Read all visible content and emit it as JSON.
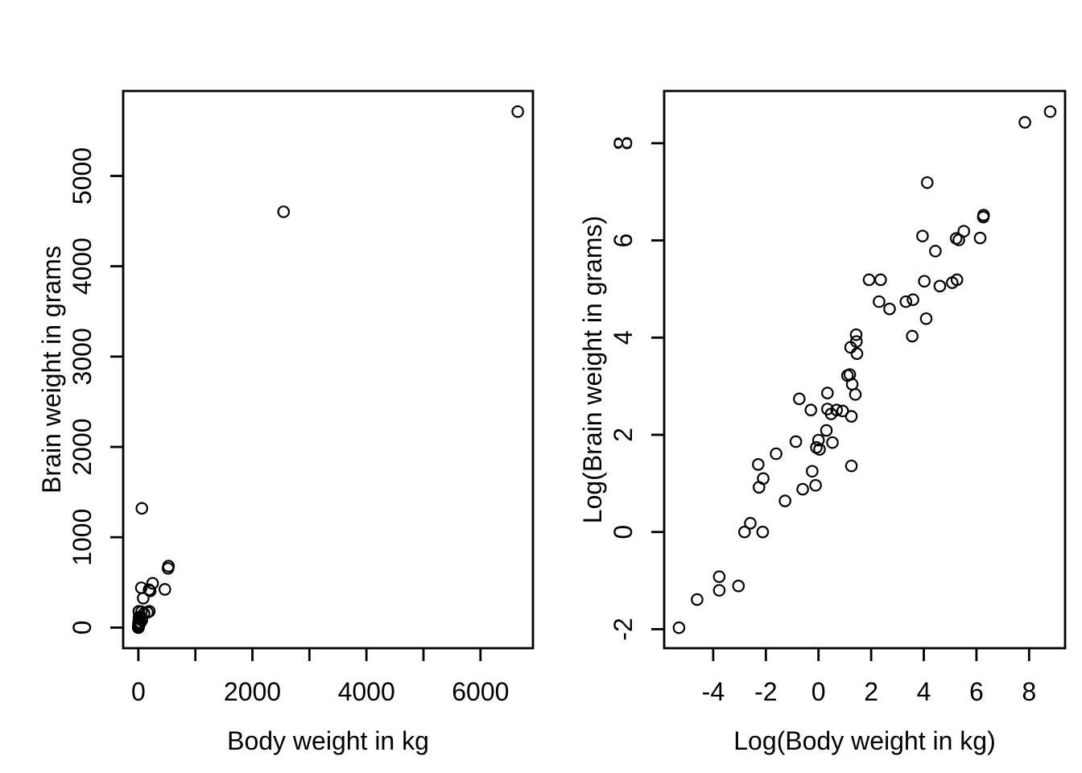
{
  "figure": {
    "background": "#ffffff",
    "foreground": "#000000",
    "marker": "open-circle"
  },
  "chart_data": [
    {
      "type": "scatter",
      "title": "",
      "xlabel": "Body weight in kg",
      "ylabel": "Brain weight in grams",
      "marker": "open-circle",
      "grid": false,
      "legend": "none",
      "xlim": [
        -266.2,
        6920.2
      ],
      "ylim": [
        -228.3,
        5940.5
      ],
      "xticks": [
        0,
        1000,
        2000,
        3000,
        4000,
        5000,
        6000
      ],
      "xtick_labels": [
        "0",
        "",
        "2000",
        "",
        "4000",
        "",
        "6000"
      ],
      "yticks": [
        0,
        1000,
        2000,
        3000,
        4000,
        5000
      ],
      "ytick_labels": [
        "0",
        "1000",
        "2000",
        "3000",
        "4000",
        "5000"
      ],
      "x": [
        3.385,
        0.48,
        1.35,
        465,
        36.33,
        27.66,
        14.83,
        1.04,
        4.19,
        0.425,
        0.101,
        0.92,
        1,
        0.005,
        0.06,
        3.5,
        2,
        1.7,
        2547,
        0.023,
        187.1,
        521,
        0.785,
        10,
        3.3,
        0.2,
        1.41,
        529,
        207,
        85,
        0.75,
        62,
        6654,
        3.5,
        6.8,
        35,
        4.05,
        0.12,
        0.023,
        0.01,
        1.4,
        250,
        2.5,
        55.5,
        100,
        52.16,
        10.55,
        0.55,
        60,
        3.6,
        4.288,
        0.28,
        0.075,
        0.122,
        0.048,
        192,
        3,
        160,
        0.9,
        1.62,
        0.104,
        4.235
      ],
      "y": [
        44.5,
        15.5,
        8.1,
        423,
        119.5,
        115,
        98.2,
        5.5,
        58,
        6.4,
        4,
        5.7,
        6.6,
        0.14,
        1,
        10.8,
        12.3,
        6.3,
        4603,
        0.3,
        419,
        655,
        3.5,
        115,
        25.6,
        5,
        17.5,
        680,
        406,
        325,
        12.3,
        1320,
        5712,
        3.9,
        179,
        56,
        17,
        1,
        0.4,
        0.25,
        12.5,
        490,
        12.1,
        175,
        157,
        440,
        179.5,
        2.4,
        81,
        21,
        39.2,
        1.9,
        1.2,
        3,
        0.33,
        180,
        25,
        169,
        2.6,
        11.4,
        2.5,
        50.4
      ]
    },
    {
      "type": "scatter",
      "title": "",
      "xlabel": "Log(Body weight in kg)",
      "ylabel": "Log(Brain weight in grams)",
      "marker": "open-circle",
      "grid": false,
      "legend": "none",
      "xlim": [
        -5.862,
        9.367
      ],
      "ylim": [
        -2.391,
        9.075
      ],
      "xticks": [
        -4,
        -2,
        0,
        2,
        4,
        6,
        8
      ],
      "xtick_labels": [
        "-4",
        "-2",
        "0",
        "2",
        "4",
        "6",
        "8"
      ],
      "yticks": [
        -2,
        0,
        2,
        4,
        6,
        8
      ],
      "ytick_labels": [
        "-2",
        "0",
        "2",
        "4",
        "6",
        "8"
      ],
      "x": [
        1.22,
        -0.73,
        0.3,
        6.14,
        3.59,
        3.32,
        2.7,
        0.04,
        1.43,
        -0.86,
        -2.29,
        -0.08,
        0.0,
        -5.3,
        -2.81,
        1.25,
        0.69,
        0.53,
        7.84,
        -3.77,
        5.23,
        6.26,
        -0.24,
        2.3,
        1.19,
        -1.61,
        0.34,
        6.27,
        5.33,
        4.44,
        -0.29,
        4.13,
        8.8,
        1.25,
        1.92,
        3.56,
        1.4,
        -2.12,
        -3.77,
        -4.61,
        0.34,
        5.52,
        0.92,
        4.02,
        4.61,
        3.95,
        2.36,
        -0.6,
        4.09,
        1.28,
        1.46,
        -1.27,
        -2.59,
        -2.1,
        -3.04,
        5.26,
        1.1,
        5.08,
        -0.11,
        0.48,
        -2.26,
        1.44
      ],
      "y": [
        3.8,
        2.74,
        2.09,
        6.05,
        4.78,
        4.74,
        4.59,
        1.7,
        4.06,
        1.86,
        1.39,
        1.74,
        1.89,
        -1.97,
        0.0,
        2.38,
        2.51,
        1.84,
        8.43,
        -1.2,
        6.04,
        6.48,
        1.25,
        4.74,
        3.24,
        1.61,
        2.86,
        6.52,
        6.01,
        5.78,
        2.51,
        7.19,
        8.65,
        1.36,
        5.19,
        4.03,
        2.83,
        0.0,
        -0.92,
        -1.39,
        2.53,
        6.19,
        2.49,
        5.16,
        5.06,
        6.09,
        5.19,
        0.88,
        4.39,
        3.04,
        3.67,
        0.64,
        0.18,
        1.1,
        -1.11,
        5.19,
        3.22,
        5.13,
        0.96,
        2.43,
        0.92,
        3.92
      ]
    }
  ]
}
